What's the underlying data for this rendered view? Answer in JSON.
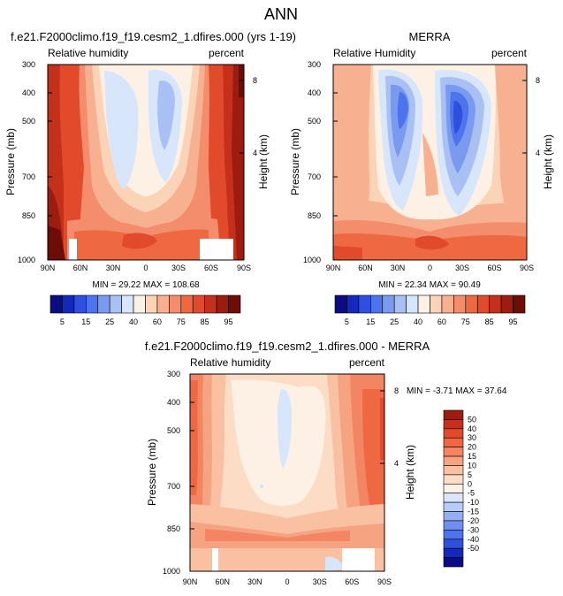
{
  "page_title": "ANN",
  "colors": {
    "red_scale": [
      "#0b0c83",
      "#1428bb",
      "#2f4fdc",
      "#4d74ec",
      "#7a9af0",
      "#a9c0f5",
      "#d8e6fb",
      "#fcf1e4",
      "#fbd3b6",
      "#f8b190",
      "#f48d6b",
      "#ee6842",
      "#e14a2a",
      "#c4301a",
      "#9c1c10",
      "#6e0d08"
    ],
    "diff_scale": [
      "#0b0c83",
      "#1428bb",
      "#2f4fdc",
      "#4d74ec",
      "#6f90ef",
      "#94b0f3",
      "#b7cdf7",
      "#d8e6fb",
      "#fcf1e4",
      "#fcdcc4",
      "#f9c0a2",
      "#f6a382",
      "#f38563",
      "#ee6842",
      "#e14a2a",
      "#c4301a",
      "#9c1c10"
    ]
  },
  "chart_data": [
    {
      "type": "contour",
      "title": "f.e21.F2000climo.f19_f19.cesm2_1.dfires.000 (yrs 1-19)",
      "left_label": "Relative humidity",
      "right_label": "percent",
      "ylabel": "Pressure (mb)",
      "y2label": "Height (km)",
      "x_ticks": [
        "90N",
        "60N",
        "30N",
        "0",
        "30S",
        "60S",
        "90S"
      ],
      "y_ticks": [
        "300",
        "400",
        "500",
        "700",
        "850",
        "1000"
      ],
      "y2_ticks": [
        "8",
        "4"
      ],
      "stats": "MIN = 29.22  MAX = 108.68",
      "colorbar_labels": [
        "5",
        "15",
        "25",
        "40",
        "60",
        "75",
        "85",
        "95"
      ]
    },
    {
      "type": "contour",
      "title": "MERRA",
      "left_label": "Relative Humidity",
      "right_label": "percent",
      "ylabel": "Pressure (mb)",
      "y2label": "Height (km)",
      "x_ticks": [
        "90N",
        "60N",
        "30N",
        "0",
        "30S",
        "60S",
        "90S"
      ],
      "y_ticks": [
        "300",
        "400",
        "500",
        "700",
        "850",
        "1000"
      ],
      "y2_ticks": [
        "8",
        "4"
      ],
      "stats": "MIN = 22.34  MAX = 90.49",
      "colorbar_labels": [
        "5",
        "15",
        "25",
        "40",
        "60",
        "75",
        "85",
        "95"
      ]
    },
    {
      "type": "contour",
      "title": "f.e21.F2000climo.f19_f19.cesm2_1.dfires.000 - MERRA",
      "left_label": "Relative humidity",
      "right_label": "percent",
      "ylabel": "Pressure (mb)",
      "y2label": "Height (km)",
      "x_ticks": [
        "90N",
        "60N",
        "30N",
        "0",
        "30S",
        "60S",
        "90S"
      ],
      "y_ticks": [
        "300",
        "400",
        "500",
        "700",
        "850",
        "1000"
      ],
      "y2_ticks": [
        "8",
        "4"
      ],
      "stats": "MIN = -3.71  MAX = 37.64",
      "colorbar_labels": [
        "50",
        "40",
        "30",
        "20",
        "15",
        "10",
        "5",
        "0",
        "-5",
        "-10",
        "-15",
        "-20",
        "-30",
        "-40",
        "-50"
      ]
    }
  ]
}
